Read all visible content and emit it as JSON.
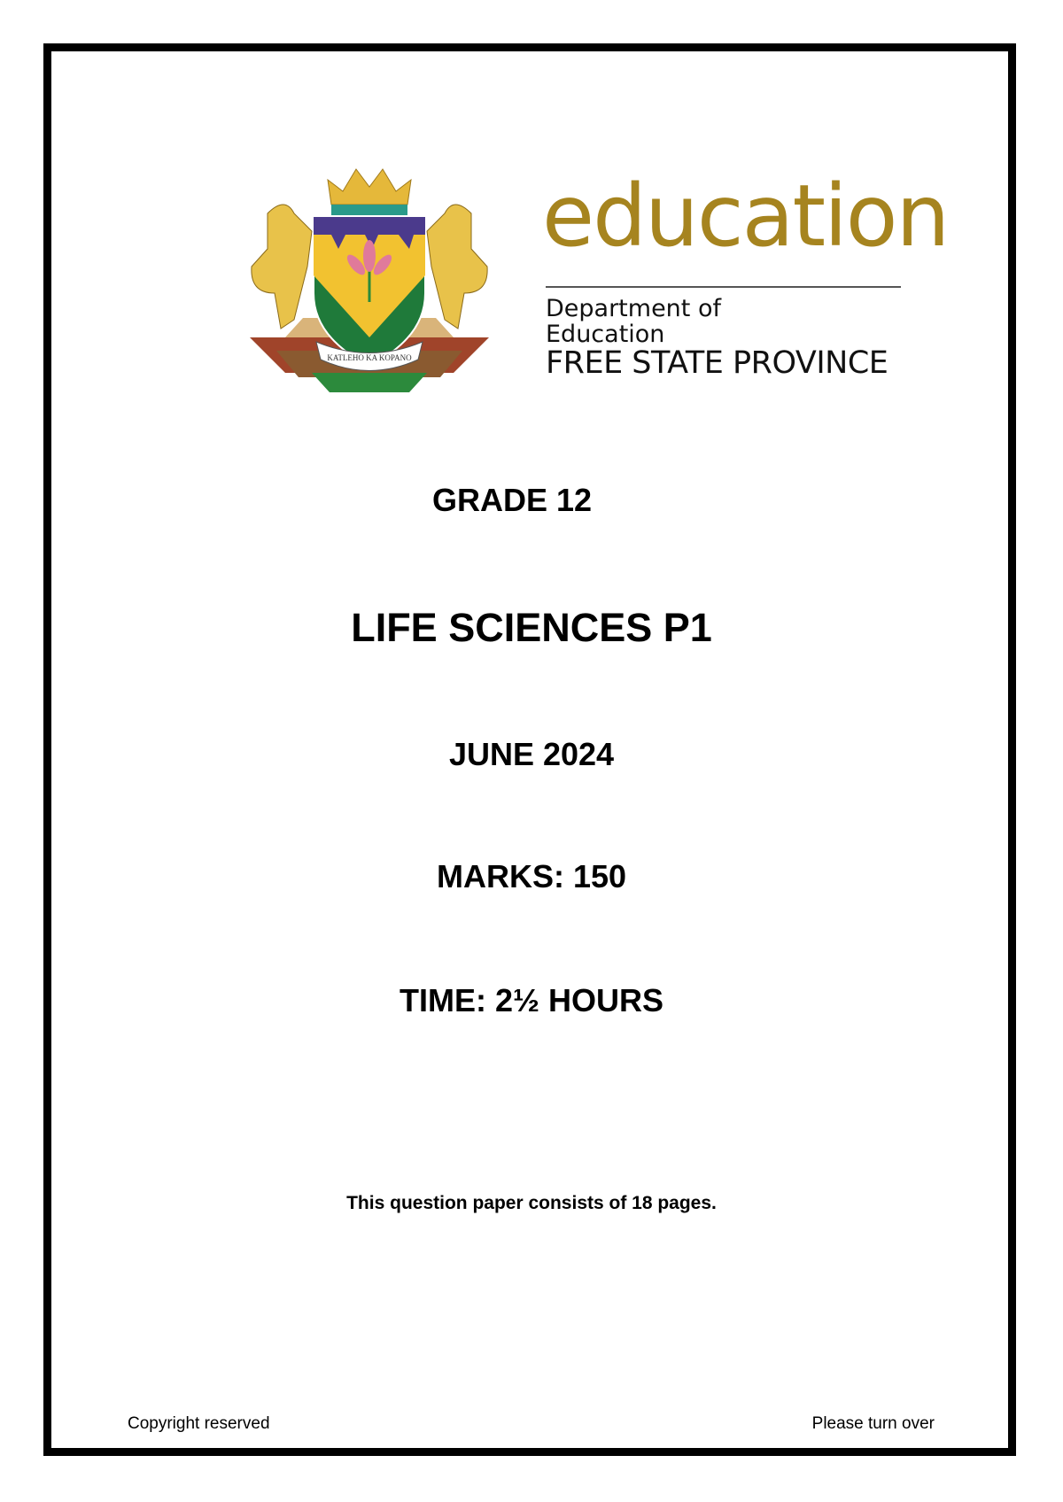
{
  "logo": {
    "motto": "KATLEHO KA KOPANO",
    "wordmark": "education",
    "department_line1": "Department of",
    "department_line2": "Education",
    "province": "FREE STATE PROVINCE",
    "colors": {
      "gold": "#a6841f",
      "green": "#1f7a3a",
      "purple": "#4b3a8c",
      "yellow": "#f2c230"
    }
  },
  "cover": {
    "grade": "GRADE 12",
    "subject": "LIFE SCIENCES P1",
    "session": "JUNE 2024",
    "marks": "MARKS: 150",
    "time": "TIME: 2½ HOURS",
    "pages_note": "This question paper consists of 18 pages."
  },
  "footer": {
    "left": "Copyright reserved",
    "right": "Please turn over"
  }
}
